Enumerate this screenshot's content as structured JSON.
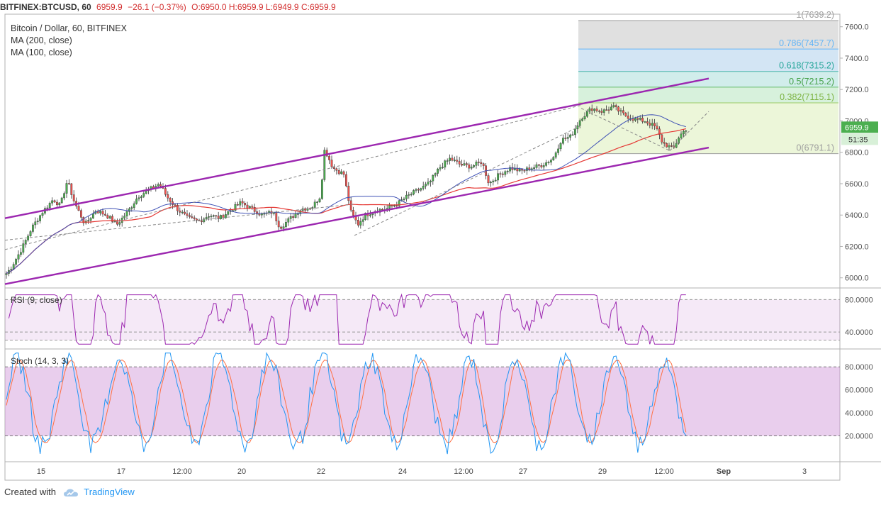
{
  "header": {
    "symbol": "BITFINEX:BTCUSD, 60",
    "last": "6959.9",
    "change": "−26.1 (−0.37%)",
    "ohlc": "O:6950.0 H:6959.9 L:6949.9 C:6959.9"
  },
  "legend": {
    "title": "Bitcoin / Dollar, 60, BITFINEX",
    "ma200": "MA (200, close)",
    "ma100": "MA (100, close)",
    "rsi": "RSI (9, close)",
    "stoch": "Stoch (14, 3, 3)"
  },
  "price_badge": "6959.9",
  "timer_badge": "51:35",
  "footer": {
    "created_with": "Created with",
    "brand": "TradingView"
  },
  "colors": {
    "up": "#4caf50",
    "down": "#ef5350",
    "channel": "#9c27b0",
    "ma200": "#e53935",
    "ma100": "#3f51b5",
    "rsi_line": "#9c27b0",
    "stoch_k": "#2196f3",
    "stoch_d": "#ff7043"
  },
  "chart_data": {
    "type": "candlestick",
    "price_axis": {
      "ticks": [
        "7600.0",
        "7400.0",
        "7200.0",
        "7000.0",
        "6800.0",
        "6600.0",
        "6400.0",
        "6200.0",
        "6000.0"
      ],
      "range": [
        5940,
        7680
      ]
    },
    "time_axis": {
      "ticks": [
        "15",
        "17",
        "12:00",
        "20",
        "22",
        "24",
        "12:00",
        "27",
        "29",
        "12:00",
        "Sep",
        "3"
      ]
    },
    "fibonacci": [
      {
        "label": "1(7639.2)",
        "level": 7639.2
      },
      {
        "label": "0.786(7457.7)",
        "level": 7457.7
      },
      {
        "label": "0.618(7315.2)",
        "level": 7315.2
      },
      {
        "label": "0.5(7215.2)",
        "level": 7215.2
      },
      {
        "label": "0.382(7115.1)",
        "level": 7115.1
      },
      {
        "label": "0(6791.1)",
        "level": 6791.1
      }
    ],
    "price_anchors": [
      [
        0,
        5980
      ],
      [
        15,
        6060
      ],
      [
        30,
        6180
      ],
      [
        45,
        6320
      ],
      [
        60,
        6420
      ],
      [
        75,
        6500
      ],
      [
        85,
        6460
      ],
      [
        95,
        6620
      ],
      [
        105,
        6480
      ],
      [
        120,
        6340
      ],
      [
        135,
        6430
      ],
      [
        150,
        6400
      ],
      [
        165,
        6340
      ],
      [
        180,
        6420
      ],
      [
        195,
        6520
      ],
      [
        210,
        6560
      ],
      [
        225,
        6600
      ],
      [
        235,
        6520
      ],
      [
        250,
        6440
      ],
      [
        265,
        6380
      ],
      [
        280,
        6360
      ],
      [
        295,
        6400
      ],
      [
        310,
        6380
      ],
      [
        325,
        6430
      ],
      [
        340,
        6480
      ],
      [
        355,
        6440
      ],
      [
        370,
        6400
      ],
      [
        385,
        6420
      ],
      [
        395,
        6320
      ],
      [
        410,
        6380
      ],
      [
        425,
        6440
      ],
      [
        440,
        6450
      ],
      [
        452,
        6520
      ],
      [
        458,
        6820
      ],
      [
        470,
        6700
      ],
      [
        485,
        6660
      ],
      [
        495,
        6420
      ],
      [
        505,
        6340
      ],
      [
        515,
        6400
      ],
      [
        530,
        6430
      ],
      [
        545,
        6440
      ],
      [
        560,
        6470
      ],
      [
        575,
        6520
      ],
      [
        590,
        6560
      ],
      [
        605,
        6600
      ],
      [
        620,
        6700
      ],
      [
        635,
        6760
      ],
      [
        650,
        6720
      ],
      [
        665,
        6710
      ],
      [
        680,
        6740
      ],
      [
        690,
        6600
      ],
      [
        705,
        6660
      ],
      [
        720,
        6700
      ],
      [
        735,
        6680
      ],
      [
        750,
        6700
      ],
      [
        765,
        6720
      ],
      [
        780,
        6760
      ],
      [
        792,
        6880
      ],
      [
        805,
        6900
      ],
      [
        820,
        7020
      ],
      [
        835,
        7080
      ],
      [
        850,
        7060
      ],
      [
        865,
        7090
      ],
      [
        880,
        7040
      ],
      [
        895,
        7010
      ],
      [
        910,
        7000
      ],
      [
        925,
        6960
      ],
      [
        935,
        6860
      ],
      [
        950,
        6820
      ],
      [
        958,
        6900
      ],
      [
        968,
        6950
      ]
    ],
    "channel": {
      "upper": [
        [
          7,
          6380
        ],
        [
          1000,
          7270
        ]
      ],
      "lower": [
        [
          7,
          5960
        ],
        [
          1000,
          6830
        ]
      ]
    },
    "rsi": {
      "levels": [
        80,
        40
      ],
      "range": [
        20,
        90
      ],
      "ticks": [
        "80.0000",
        "40.0000"
      ]
    },
    "stoch": {
      "levels": [
        80,
        20
      ],
      "range": [
        0,
        90
      ],
      "ticks": [
        "80.0000",
        "60.0000",
        "40.0000",
        "20.0000"
      ]
    }
  }
}
